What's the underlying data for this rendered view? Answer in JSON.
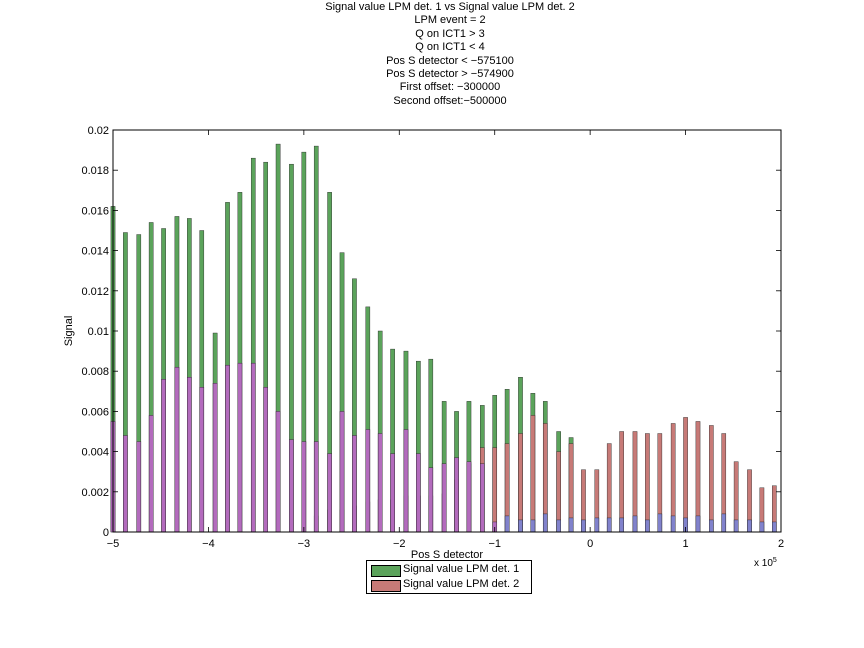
{
  "title_lines": [
    "Signal value LPM det. 1 vs Signal value LPM det. 2",
    "LPM event = 2",
    "Q on ICT1 > 3",
    "Q on ICT1 < 4",
    "Pos S detector < −575100",
    "Pos S detector > −574900",
    "",
    "First offset: −300000",
    "Second offset:−500000"
  ],
  "colors": {
    "series1": "#5ba35b",
    "series2": "#c77a77",
    "overlap": "#b36bbd",
    "overlap_low": "#8182cc"
  },
  "chart_data": {
    "type": "bar",
    "title": "Signal value LPM det. 1 vs Signal value LPM det. 2",
    "xlabel": "Pos S detector",
    "ylabel": "Signal",
    "x_exponent_label": "x 10^5",
    "xlim": [
      -500000,
      200000
    ],
    "ylim": [
      0,
      0.02
    ],
    "x_ticks": [
      -5,
      -4,
      -3,
      -2,
      -1,
      0,
      1,
      2
    ],
    "x_tick_labels": [
      "−5",
      "−4",
      "−3",
      "−2",
      "−1",
      "0",
      "1",
      "2"
    ],
    "y_ticks": [
      0,
      0.002,
      0.004,
      0.006,
      0.008,
      0.01,
      0.012,
      0.014,
      0.016,
      0.018,
      0.02
    ],
    "y_tick_labels": [
      "0",
      "0.002",
      "0.004",
      "0.006",
      "0.008",
      "0.01",
      "0.012",
      "0.014",
      "0.016",
      "0.018",
      "0.02"
    ],
    "grid": false,
    "legend_position": "bottom-center",
    "series": [
      {
        "name": "Signal value LPM det. 1",
        "x": [
          -500000,
          -487000,
          -473000,
          -460000,
          -447000,
          -433000,
          -420000,
          -407000,
          -393000,
          -380000,
          -367000,
          -353000,
          -340000,
          -327000,
          -313000,
          -300000,
          -287000,
          -273000,
          -260000,
          -247000,
          -233000,
          -220000,
          -207000,
          -193000,
          -180000,
          -167000,
          -153000,
          -140000,
          -127000,
          -113000,
          -100000,
          -87000,
          -73000,
          -60000,
          -47000,
          -33000,
          -20000
        ],
        "values": [
          0.0162,
          0.0149,
          0.0148,
          0.0154,
          0.0151,
          0.0157,
          0.0156,
          0.015,
          0.0099,
          0.0164,
          0.0169,
          0.0186,
          0.0184,
          0.0193,
          0.0183,
          0.0189,
          0.0192,
          0.0169,
          0.0139,
          0.0126,
          0.0112,
          0.01,
          0.0091,
          0.009,
          0.0085,
          0.0086,
          0.0065,
          0.006,
          0.0065,
          0.0063,
          0.0068,
          0.0071,
          0.0077,
          0.0069,
          0.0065,
          0.005,
          0.0047
        ]
      },
      {
        "name": "Signal value LPM det. 2",
        "x": [
          -287000,
          -273000,
          -260000,
          -247000,
          -233000,
          -220000,
          -207000,
          -193000,
          -180000,
          -167000,
          -153000,
          -140000,
          -127000,
          -113000,
          -100000,
          -87000,
          -73000,
          -60000,
          -47000,
          -33000,
          -20000,
          -7000,
          7000,
          20000,
          33000,
          47000,
          60000,
          73000,
          87000,
          100000,
          113000,
          127000,
          140000,
          153000,
          167000,
          180000,
          193000
        ],
        "values": [
          0.0008,
          0.0011,
          0.0011,
          0.0013,
          0.0015,
          0.0016,
          0.0016,
          0.0018,
          0.0018,
          0.0018,
          0.0019,
          0.0026,
          0.0034,
          0.0042,
          0.0042,
          0.0044,
          0.0049,
          0.0058,
          0.0054,
          0.004,
          0.0044,
          0.0031,
          0.0031,
          0.0044,
          0.005,
          0.005,
          0.0049,
          0.0049,
          0.0054,
          0.0057,
          0.0055,
          0.0053,
          0.0049,
          0.0035,
          0.0031,
          0.0022,
          0.0023
        ]
      },
      {
        "name": "",
        "x": [
          -500000,
          -487000,
          -473000,
          -460000,
          -447000,
          -433000,
          -420000,
          -407000,
          -393000,
          -380000,
          -367000,
          -353000,
          -340000,
          -327000,
          -313000,
          -300000,
          -287000,
          -273000,
          -260000,
          -247000,
          -233000,
          -220000,
          -207000,
          -193000,
          -180000,
          -167000,
          -153000,
          -140000,
          -127000,
          -113000,
          -100000,
          -87000,
          -73000,
          -60000,
          -47000,
          -33000,
          -20000,
          -7000,
          7000,
          20000,
          33000,
          47000,
          60000,
          73000,
          87000,
          100000,
          113000,
          127000,
          140000,
          153000,
          167000,
          180000,
          193000
        ],
        "values": [
          0.0055,
          0.0048,
          0.0045,
          0.0058,
          0.0076,
          0.0082,
          0.0077,
          0.0072,
          0.0074,
          0.0083,
          0.0084,
          0.0084,
          0.0072,
          0.006,
          0.0046,
          0.0045,
          0.0045,
          0.0039,
          0.006,
          0.0048,
          0.0051,
          0.0049,
          0.0039,
          0.0051,
          0.0039,
          0.0032,
          0.0034,
          0.0037,
          0.0035,
          0.0034,
          0.0005,
          0.0008,
          0.0006,
          0.0006,
          0.0009,
          0.0006,
          0.0007,
          0.0006,
          0.0007,
          0.0007,
          0.0007,
          0.0008,
          0.0006,
          0.0009,
          0.0008,
          0.0007,
          0.0008,
          0.0006,
          0.0009,
          0.0006,
          0.0006,
          0.0005,
          0.0005
        ]
      }
    ]
  },
  "legend": {
    "items": [
      {
        "label": "Signal value LPM det. 1"
      },
      {
        "label": "Signal value LPM det. 2"
      }
    ]
  }
}
